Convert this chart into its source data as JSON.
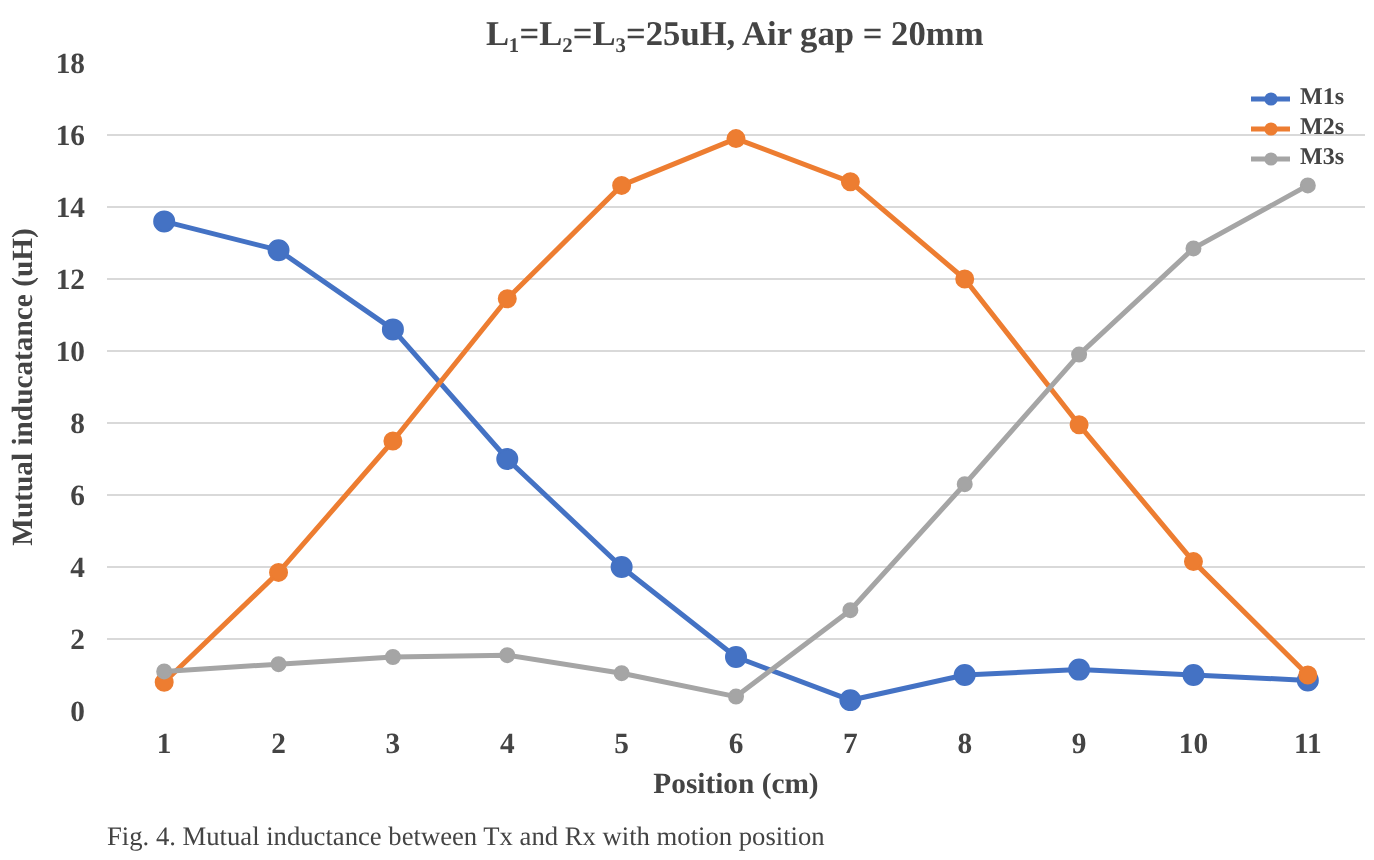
{
  "chart_data": {
    "type": "line",
    "title": "L₁=L₂=L₃=25uH, Air gap = 20mm",
    "xlabel": "Position (cm)",
    "ylabel": "Mutual inducatance (uH)",
    "x": [
      1,
      2,
      3,
      4,
      5,
      6,
      7,
      8,
      9,
      10,
      11
    ],
    "series": [
      {
        "name": "M1s",
        "color": "#4472c4",
        "values": [
          13.6,
          12.8,
          10.6,
          7.0,
          4.0,
          1.5,
          0.3,
          1.0,
          1.15,
          1.0,
          0.85
        ]
      },
      {
        "name": "M2s",
        "color": "#ed7d31",
        "values": [
          0.8,
          3.85,
          7.5,
          11.45,
          14.6,
          15.9,
          14.7,
          12.0,
          7.95,
          4.15,
          1.0
        ]
      },
      {
        "name": "M3s",
        "color": "#a5a5a5",
        "values": [
          1.1,
          1.3,
          1.5,
          1.55,
          1.05,
          0.4,
          2.8,
          6.3,
          9.9,
          12.85,
          14.6
        ]
      }
    ],
    "xlim": [
      0.5,
      11.5
    ],
    "xticks": [
      1,
      2,
      3,
      4,
      5,
      6,
      7,
      8,
      9,
      10,
      11
    ],
    "ylim": [
      0,
      18
    ],
    "yticks": [
      0,
      2,
      4,
      6,
      8,
      10,
      12,
      14,
      16,
      18
    ],
    "grid": "y",
    "legend": "top right",
    "marker": "circle",
    "line_style": "solid",
    "annotations": [
      "Fig. 4. Mutual inductance between Tx and Rx with motion position"
    ]
  }
}
